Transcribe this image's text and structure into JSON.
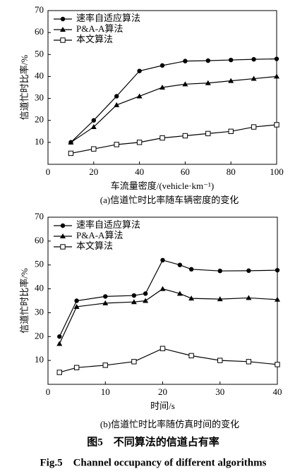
{
  "chart_data": [
    {
      "type": "line",
      "subtitle": "(a)信道忙时比率随车辆密度的变化",
      "xlabel": "车流量密度/(vehicle·km⁻¹)",
      "ylabel": "信道忙时比率/%",
      "xlim": [
        0,
        100
      ],
      "xticks": [
        0,
        20,
        40,
        60,
        80,
        100
      ],
      "ylim": [
        0,
        70
      ],
      "yticks": [
        10,
        20,
        30,
        40,
        50,
        60,
        70
      ],
      "legend": "upper left",
      "series": [
        {
          "name": "速率自适应算法",
          "color": "#000000",
          "marker": "circle",
          "x": [
            10,
            20,
            30,
            40,
            50,
            60,
            70,
            80,
            90,
            100
          ],
          "values": [
            10,
            20,
            31,
            42.5,
            45,
            47,
            47.2,
            47.5,
            47.8,
            48
          ]
        },
        {
          "name": "P&A-A算法",
          "color": "#000000",
          "marker": "triangle",
          "x": [
            10,
            20,
            30,
            40,
            50,
            60,
            70,
            80,
            90,
            100
          ],
          "values": [
            10,
            17,
            27,
            31,
            35,
            36.5,
            37,
            38,
            39,
            40
          ]
        },
        {
          "name": "本文算法",
          "color": "#000000",
          "marker": "square",
          "x": [
            10,
            20,
            30,
            40,
            50,
            60,
            70,
            80,
            90,
            100
          ],
          "values": [
            5,
            7,
            9,
            10,
            12,
            13,
            14,
            15,
            17,
            18
          ]
        }
      ]
    },
    {
      "type": "line",
      "subtitle": "(b)信道忙时比率随仿真时间的变化",
      "xlabel": "时间/s",
      "ylabel": "信道忙时比率/%",
      "xlim": [
        0,
        40
      ],
      "xticks": [
        0,
        10,
        20,
        30,
        40
      ],
      "ylim": [
        0,
        70
      ],
      "yticks": [
        10,
        20,
        30,
        40,
        50,
        60,
        70
      ],
      "legend": "upper left",
      "series": [
        {
          "name": "速率自适应算法",
          "color": "#000000",
          "marker": "circle",
          "x": [
            2,
            5,
            10,
            15,
            17,
            20,
            23,
            25,
            30,
            35,
            40
          ],
          "values": [
            20,
            35,
            36.8,
            37.2,
            38,
            52,
            50,
            48.2,
            47.5,
            47.6,
            47.8
          ]
        },
        {
          "name": "P&A-A算法",
          "color": "#000000",
          "marker": "triangle",
          "x": [
            2,
            5,
            10,
            15,
            17,
            20,
            23,
            25,
            30,
            35,
            40
          ],
          "values": [
            17,
            32.5,
            34,
            34.5,
            35,
            40,
            38,
            36,
            35.7,
            36.2,
            35.5
          ]
        },
        {
          "name": "本文算法",
          "color": "#000000",
          "marker": "square",
          "x": [
            2,
            5,
            10,
            15,
            20,
            25,
            30,
            35,
            40
          ],
          "values": [
            5,
            7,
            8,
            9.5,
            15,
            12,
            10,
            9.5,
            8.3
          ]
        }
      ]
    }
  ],
  "figure": {
    "caption_cn": "图5　不同算法的信道占有率",
    "caption_en": "Fig.5　Channel occupancy of different algorithms"
  }
}
